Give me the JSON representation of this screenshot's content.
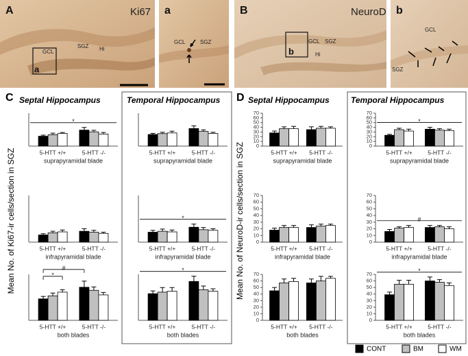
{
  "images": [
    {
      "letter": "A",
      "stain": "Ki67",
      "labels": [
        "GCL",
        "SGZ",
        "Hi"
      ],
      "inset": "a"
    },
    {
      "letter": "a",
      "labels": [
        "GCL",
        "SGZ"
      ]
    },
    {
      "letter": "B",
      "stain": "NeuroD",
      "labels": [
        "GCL",
        "SGZ",
        "Hi"
      ],
      "inset": "b"
    },
    {
      "letter": "b",
      "labels": [
        "GCL",
        "SGZ"
      ]
    }
  ],
  "panels": [
    {
      "letter": "C",
      "y_label": "Mean No. of Ki67-ir cells/section in SGZ",
      "columns": [
        "Septal Hippocampus",
        "Temporal Hippocampus"
      ]
    },
    {
      "letter": "D",
      "y_label": "Mean No. of NeuroD-ir cells/section in SGZ",
      "columns": [
        "Septal Hippocampus",
        "Temporal Hippocampus"
      ]
    }
  ],
  "chart_data": [
    {
      "type": "bar",
      "categories": [
        "5-HTT +/+",
        "5-HTT -/-"
      ],
      "xlabel": "suprapyramidal blade",
      "ylim": [
        0,
        15
      ],
      "series": [
        {
          "name": "CONT",
          "color": "#000000",
          "values": [
            4.5,
            7.3
          ],
          "errors": [
            0.5,
            1.2
          ]
        },
        {
          "name": "BM",
          "color": "#c0c0c0",
          "values": [
            5.2,
            6.5
          ],
          "errors": [
            0.7,
            0.7
          ]
        },
        {
          "name": "WM",
          "color": "#ffffff",
          "values": [
            5.8,
            5.5
          ],
          "errors": [
            0.4,
            0.7
          ]
        }
      ],
      "significance": [
        {
          "label": "*",
          "from": [
            0,
            0
          ],
          "to": [
            1,
            2
          ]
        }
      ]
    },
    {
      "type": "bar",
      "categories": [
        "5-HTT +/+",
        "5-HTT -/-"
      ],
      "xlabel": "suprapyramidal blade",
      "ylim": [
        0,
        15
      ],
      "series": [
        {
          "name": "CONT",
          "color": "#000000",
          "values": [
            5.3,
            8.0
          ],
          "errors": [
            0.5,
            1.2
          ]
        },
        {
          "name": "BM",
          "color": "#c0c0c0",
          "values": [
            5.7,
            6.7
          ],
          "errors": [
            0.6,
            0.7
          ]
        },
        {
          "name": "WM",
          "color": "#ffffff",
          "values": [
            6.0,
            5.8
          ],
          "errors": [
            0.8,
            0.5
          ]
        }
      ]
    },
    {
      "type": "bar",
      "categories": [
        "5-HTT +/+",
        "5-HTT -/-"
      ],
      "xlabel": "infrapyramidal blade",
      "ylim": [
        0,
        15
      ],
      "series": [
        {
          "name": "CONT",
          "color": "#000000",
          "values": [
            2.3,
            3.5
          ],
          "errors": [
            0.4,
            0.8
          ]
        },
        {
          "name": "BM",
          "color": "#c0c0c0",
          "values": [
            3.0,
            3.2
          ],
          "errors": [
            0.5,
            0.6
          ]
        },
        {
          "name": "WM",
          "color": "#ffffff",
          "values": [
            3.3,
            2.8
          ],
          "errors": [
            0.6,
            0.4
          ]
        }
      ]
    },
    {
      "type": "bar",
      "categories": [
        "5-HTT +/+",
        "5-HTT -/-"
      ],
      "xlabel": "infrapyramidal blade",
      "ylim": [
        0,
        15
      ],
      "series": [
        {
          "name": "CONT",
          "color": "#000000",
          "values": [
            3.2,
            4.8
          ],
          "errors": [
            0.6,
            1.0
          ]
        },
        {
          "name": "BM",
          "color": "#c0c0c0",
          "values": [
            3.5,
            4.0
          ],
          "errors": [
            0.7,
            0.7
          ]
        },
        {
          "name": "WM",
          "color": "#ffffff",
          "values": [
            3.3,
            3.8
          ],
          "errors": [
            0.6,
            0.5
          ]
        }
      ],
      "significance": [
        {
          "label": "*",
          "from": [
            0,
            0
          ],
          "to": [
            1,
            2
          ]
        }
      ]
    },
    {
      "type": "bar",
      "categories": [
        "5-HTT +/+",
        "5-HTT -/-"
      ],
      "xlabel": "both blades",
      "ylim": [
        0,
        15
      ],
      "series": [
        {
          "name": "CONT",
          "color": "#000000",
          "values": [
            7.0,
            10.8
          ],
          "errors": [
            0.8,
            2.0
          ]
        },
        {
          "name": "BM",
          "color": "#c0c0c0",
          "values": [
            8.0,
            9.8
          ],
          "errors": [
            0.9,
            1.1
          ]
        },
        {
          "name": "WM",
          "color": "#ffffff",
          "values": [
            9.2,
            8.3
          ],
          "errors": [
            0.8,
            0.8
          ]
        }
      ],
      "significance": [
        {
          "label": "*",
          "from": [
            0,
            0
          ],
          "to": [
            0,
            2
          ]
        },
        {
          "label": "#",
          "from": [
            0,
            0
          ],
          "to": [
            1,
            0
          ]
        }
      ]
    },
    {
      "type": "bar",
      "categories": [
        "5-HTT +/+",
        "5-HTT -/-"
      ],
      "xlabel": "both blades",
      "ylim": [
        0,
        15
      ],
      "series": [
        {
          "name": "CONT",
          "color": "#000000",
          "values": [
            8.7,
            12.7
          ],
          "errors": [
            0.9,
            1.7
          ]
        },
        {
          "name": "BM",
          "color": "#c0c0c0",
          "values": [
            9.2,
            10.0
          ],
          "errors": [
            1.5,
            1.2
          ]
        },
        {
          "name": "WM",
          "color": "#ffffff",
          "values": [
            9.5,
            9.5
          ],
          "errors": [
            1.2,
            0.8
          ]
        }
      ],
      "significance": [
        {
          "label": "*",
          "from": [
            0,
            0
          ],
          "to": [
            1,
            2
          ]
        }
      ]
    },
    {
      "type": "bar",
      "categories": [
        "5-HTT +/+",
        "5-HTT -/-"
      ],
      "xlabel": "suprapyramidal blade",
      "ylim": [
        0,
        70
      ],
      "yticks": [
        0,
        10,
        20,
        30,
        40,
        50,
        60,
        70
      ],
      "series": [
        {
          "name": "CONT",
          "color": "#000000",
          "values": [
            28,
            35
          ],
          "errors": [
            4,
            6
          ]
        },
        {
          "name": "BM",
          "color": "#c0c0c0",
          "values": [
            37,
            38
          ],
          "errors": [
            4,
            4
          ]
        },
        {
          "name": "WM",
          "color": "#ffffff",
          "values": [
            37,
            38
          ],
          "errors": [
            5,
            3
          ]
        }
      ]
    },
    {
      "type": "bar",
      "categories": [
        "5-HTT +/+",
        "5-HTT -/-"
      ],
      "xlabel": "suprapyramidal blade",
      "ylim": [
        0,
        70
      ],
      "yticks": [
        0,
        10,
        20,
        30,
        40,
        50,
        60,
        70
      ],
      "series": [
        {
          "name": "CONT",
          "color": "#000000",
          "values": [
            23,
            36
          ],
          "errors": [
            2,
            4
          ]
        },
        {
          "name": "BM",
          "color": "#c0c0c0",
          "values": [
            35,
            34
          ],
          "errors": [
            3,
            3
          ]
        },
        {
          "name": "WM",
          "color": "#ffffff",
          "values": [
            32,
            33
          ],
          "errors": [
            4,
            3
          ]
        }
      ],
      "significance": [
        {
          "label": "*",
          "from": [
            0,
            0
          ],
          "to": [
            1,
            2
          ]
        }
      ]
    },
    {
      "type": "bar",
      "categories": [
        "5-HTT +/+",
        "5-HTT -/-"
      ],
      "xlabel": "infrapyramidal blade",
      "ylim": [
        0,
        70
      ],
      "yticks": [
        0,
        10,
        20,
        30,
        40,
        50,
        60,
        70
      ],
      "series": [
        {
          "name": "CONT",
          "color": "#000000",
          "values": [
            18,
            22
          ],
          "errors": [
            3,
            4
          ]
        },
        {
          "name": "BM",
          "color": "#c0c0c0",
          "values": [
            22,
            24
          ],
          "errors": [
            3,
            3
          ]
        },
        {
          "name": "WM",
          "color": "#ffffff",
          "values": [
            22,
            25
          ],
          "errors": [
            3,
            2
          ]
        }
      ]
    },
    {
      "type": "bar",
      "categories": [
        "5-HTT +/+",
        "5-HTT -/-"
      ],
      "xlabel": "infrapyramidal blade",
      "ylim": [
        0,
        70
      ],
      "yticks": [
        0,
        10,
        20,
        30,
        40,
        50,
        60,
        70
      ],
      "series": [
        {
          "name": "CONT",
          "color": "#000000",
          "values": [
            16,
            22
          ],
          "errors": [
            3,
            3
          ]
        },
        {
          "name": "BM",
          "color": "#c0c0c0",
          "values": [
            21,
            23
          ],
          "errors": [
            2,
            2
          ]
        },
        {
          "name": "WM",
          "color": "#ffffff",
          "values": [
            22,
            20
          ],
          "errors": [
            3,
            3
          ]
        }
      ],
      "significance": [
        {
          "label": "#",
          "from": [
            0,
            0
          ],
          "to": [
            1,
            2
          ]
        }
      ]
    },
    {
      "type": "bar",
      "categories": [
        "5-HTT +/+",
        "5-HTT -/-"
      ],
      "xlabel": "both blades",
      "ylim": [
        0,
        70
      ],
      "yticks": [
        0,
        10,
        20,
        30,
        40,
        50,
        60,
        70
      ],
      "series": [
        {
          "name": "CONT",
          "color": "#000000",
          "values": [
            45,
            57
          ],
          "errors": [
            5,
            6
          ]
        },
        {
          "name": "BM",
          "color": "#c0c0c0",
          "values": [
            57,
            60
          ],
          "errors": [
            6,
            7
          ]
        },
        {
          "name": "WM",
          "color": "#ffffff",
          "values": [
            59,
            64
          ],
          "errors": [
            5,
            3
          ]
        }
      ]
    },
    {
      "type": "bar",
      "categories": [
        "5-HTT +/+",
        "5-HTT -/-"
      ],
      "xlabel": "both blades",
      "ylim": [
        0,
        70
      ],
      "yticks": [
        0,
        10,
        20,
        30,
        40,
        50,
        60,
        70
      ],
      "series": [
        {
          "name": "CONT",
          "color": "#000000",
          "values": [
            39,
            60
          ],
          "errors": [
            4,
            6
          ]
        },
        {
          "name": "BM",
          "color": "#c0c0c0",
          "values": [
            55,
            58
          ],
          "errors": [
            6,
            4
          ]
        },
        {
          "name": "WM",
          "color": "#ffffff",
          "values": [
            55,
            53
          ],
          "errors": [
            6,
            4
          ]
        }
      ],
      "significance": [
        {
          "label": "*",
          "from": [
            0,
            0
          ],
          "to": [
            1,
            2
          ]
        }
      ]
    }
  ]
}
